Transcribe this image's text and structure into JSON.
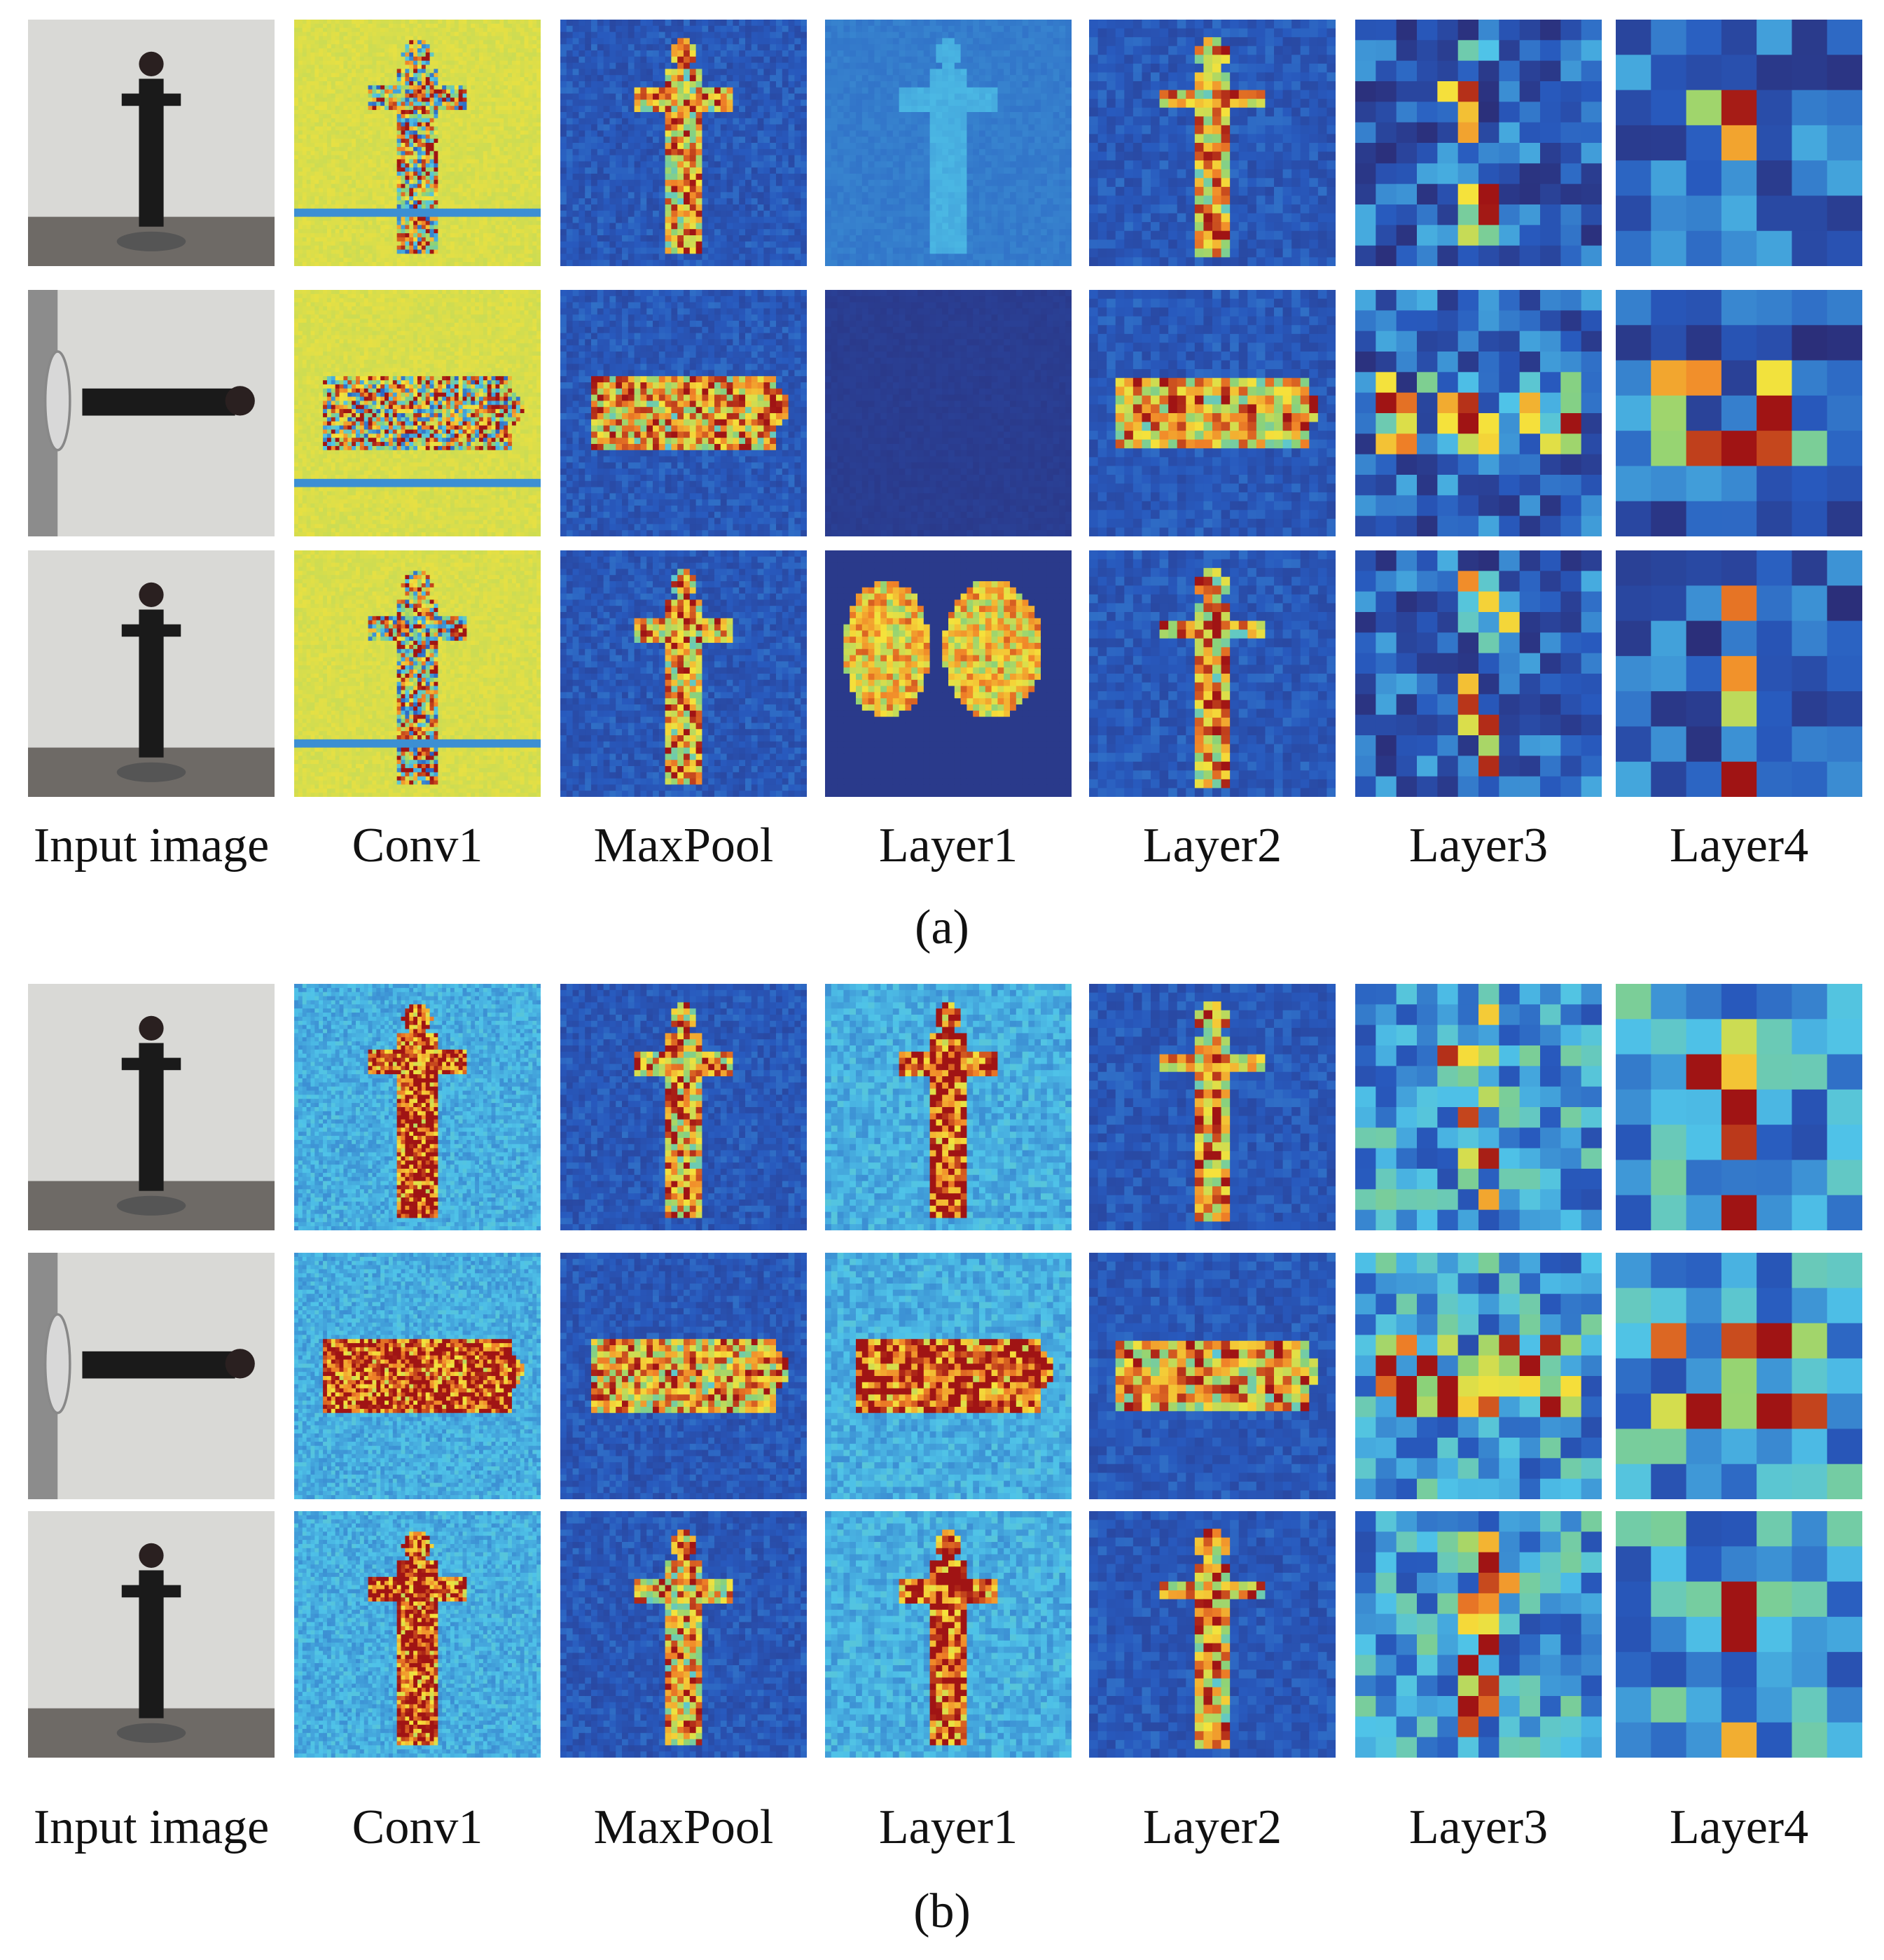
{
  "panels": [
    {
      "caption": "(a)",
      "column_labels": [
        "Input image",
        "Conv1",
        "MaxPool",
        "Layer1",
        "Layer2",
        "Layer3",
        "Layer4"
      ]
    },
    {
      "caption": "(b)",
      "column_labels": [
        "Input image",
        "Conv1",
        "MaxPool",
        "Layer1",
        "Layer2",
        "Layer3",
        "Layer4"
      ]
    }
  ],
  "colors": {
    "jet_low": "#2b2f7a",
    "jet_mid": "#4fc3e8",
    "jet_yellow": "#f5e23b",
    "jet_high": "#d7261e",
    "conv1_bg": "#bcd84a"
  }
}
